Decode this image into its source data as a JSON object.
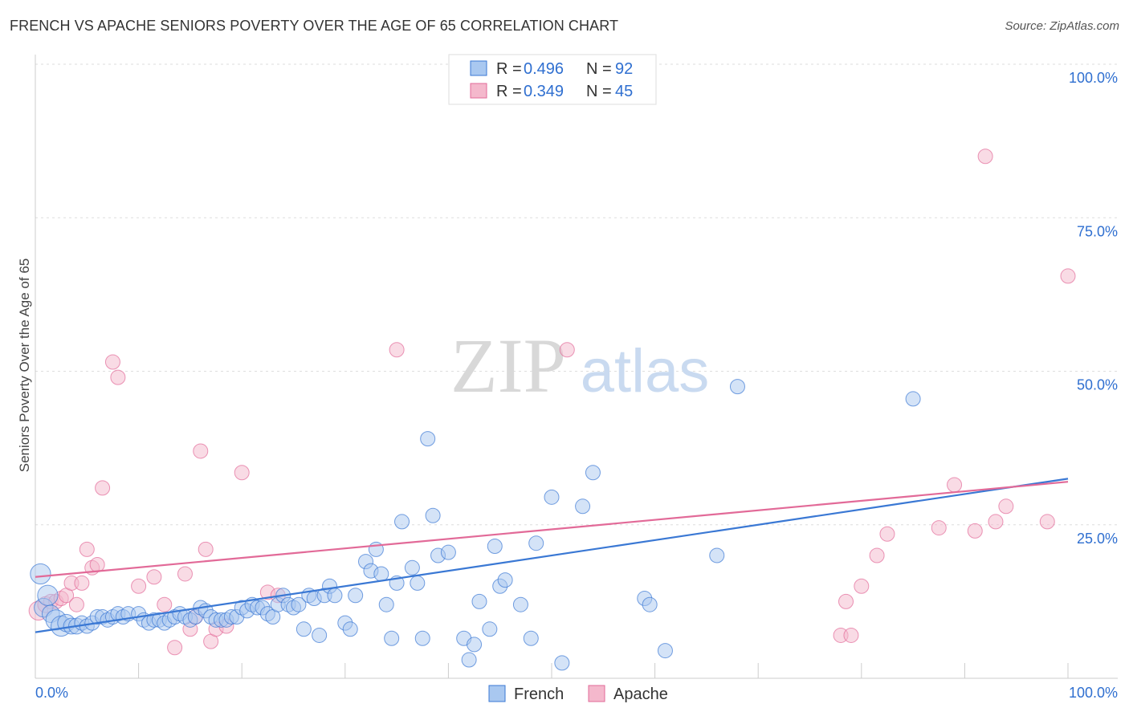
{
  "header": {
    "title": "FRENCH VS APACHE SENIORS POVERTY OVER THE AGE OF 65 CORRELATION CHART",
    "source": "Source: ZipAtlas.com"
  },
  "colors": {
    "blue": "#3a78d4",
    "blue_fill": "#a9c8f0",
    "pink": "#e26a98",
    "pink_fill": "#f4b8cc",
    "value_text": "#2f6fd0",
    "grid": "#dddddd"
  },
  "watermark": {
    "zip": "ZIP",
    "atlas": "atlas"
  },
  "chart_data": {
    "type": "scatter",
    "title": "FRENCH VS APACHE SENIORS POVERTY OVER THE AGE OF 65 CORRELATION CHART",
    "xlabel": "",
    "ylabel": "Seniors Poverty Over the Age of 65",
    "xlim": [
      0,
      100
    ],
    "ylim": [
      0,
      100
    ],
    "x_tick_labels": [
      "0.0%",
      "100.0%"
    ],
    "y_ticks": [
      {
        "value": 25,
        "label": "25.0%"
      },
      {
        "value": 50,
        "label": "50.0%"
      },
      {
        "value": 75,
        "label": "75.0%"
      },
      {
        "value": 100,
        "label": "100.0%"
      }
    ],
    "legend_stats": [
      {
        "r_label": "R =",
        "r": "0.496",
        "n_label": "N =",
        "n": "92"
      },
      {
        "r_label": "R =",
        "r": "0.349",
        "n_label": "N =",
        "n": "45"
      }
    ],
    "series": [
      {
        "name": "French",
        "trend": {
          "x1": 0,
          "y1": 7.5,
          "x2": 100,
          "y2": 32.5
        },
        "points": [
          [
            0.5,
            17,
            1.4
          ],
          [
            0.8,
            11.5,
            1.3
          ],
          [
            1.2,
            13.5,
            1.4
          ],
          [
            1.5,
            10.5,
            1.2
          ],
          [
            2,
            9.5,
            1.4
          ],
          [
            2.5,
            8.5,
            1.4
          ],
          [
            3,
            9,
            1.2
          ],
          [
            3.5,
            8.5,
            1.1
          ],
          [
            4,
            8.5,
            1.1
          ],
          [
            4.5,
            9,
            1
          ],
          [
            5,
            8.5,
            1
          ],
          [
            5.5,
            9,
            1
          ],
          [
            6,
            10,
            1
          ],
          [
            6.5,
            10,
            1
          ],
          [
            7,
            9.5,
            1
          ],
          [
            7.5,
            10,
            1
          ],
          [
            8,
            10.5,
            1
          ],
          [
            8.5,
            10,
            1
          ],
          [
            9,
            10.5,
            1
          ],
          [
            10,
            10.5,
            1
          ],
          [
            10.5,
            9.5,
            1
          ],
          [
            11,
            9,
            1
          ],
          [
            11.5,
            9.5,
            1
          ],
          [
            12,
            9.5,
            1
          ],
          [
            12.5,
            9,
            1
          ],
          [
            13,
            9.5,
            1
          ],
          [
            13.5,
            10,
            1
          ],
          [
            14,
            10.5,
            1
          ],
          [
            14.5,
            10,
            1
          ],
          [
            15,
            9.5,
            1
          ],
          [
            15.5,
            10,
            1
          ],
          [
            16,
            11.5,
            1
          ],
          [
            16.5,
            11,
            1
          ],
          [
            17,
            10,
            1
          ],
          [
            17.5,
            9.5,
            1
          ],
          [
            18,
            9.5,
            1
          ],
          [
            18.5,
            9.5,
            1
          ],
          [
            19,
            10,
            1
          ],
          [
            19.5,
            10,
            1
          ],
          [
            20,
            11.5,
            1
          ],
          [
            20.5,
            11,
            1
          ],
          [
            21,
            12,
            1
          ],
          [
            21.5,
            11.5,
            1
          ],
          [
            22,
            11.5,
            1
          ],
          [
            22.5,
            10.5,
            1
          ],
          [
            23,
            10,
            1
          ],
          [
            23.5,
            12,
            1
          ],
          [
            24,
            13.5,
            1
          ],
          [
            24.5,
            12,
            1
          ],
          [
            25,
            11.5,
            1
          ],
          [
            25.5,
            12,
            1
          ],
          [
            26,
            8,
            1
          ],
          [
            26.5,
            13.5,
            1
          ],
          [
            27,
            13,
            1
          ],
          [
            27.5,
            7,
            1
          ],
          [
            28,
            13.5,
            1
          ],
          [
            28.5,
            15,
            1
          ],
          [
            29,
            13.5,
            1
          ],
          [
            30,
            9,
            1
          ],
          [
            30.5,
            8,
            1
          ],
          [
            31,
            13.5,
            1
          ],
          [
            32,
            19,
            1
          ],
          [
            32.5,
            17.5,
            1
          ],
          [
            33,
            21,
            1
          ],
          [
            33.5,
            17,
            1
          ],
          [
            34,
            12,
            1
          ],
          [
            34.5,
            6.5,
            1
          ],
          [
            35,
            15.5,
            1
          ],
          [
            35.5,
            25.5,
            1
          ],
          [
            36.5,
            18,
            1
          ],
          [
            37,
            15.5,
            1
          ],
          [
            37.5,
            6.5,
            1
          ],
          [
            38,
            39,
            1
          ],
          [
            38.5,
            26.5,
            1
          ],
          [
            39,
            20,
            1
          ],
          [
            40,
            20.5,
            1
          ],
          [
            41.5,
            6.5,
            1
          ],
          [
            42,
            3,
            1
          ],
          [
            42.5,
            5.5,
            1
          ],
          [
            43,
            12.5,
            1
          ],
          [
            44,
            8,
            1
          ],
          [
            44.5,
            21.5,
            1
          ],
          [
            45,
            15,
            1
          ],
          [
            45.5,
            16,
            1
          ],
          [
            47,
            12,
            1
          ],
          [
            48,
            6.5,
            1
          ],
          [
            48.5,
            22,
            1
          ],
          [
            50,
            29.5,
            1
          ],
          [
            51,
            2.5,
            1
          ],
          [
            53,
            28,
            1
          ],
          [
            54,
            33.5,
            1
          ],
          [
            59,
            13,
            1
          ],
          [
            59.5,
            12,
            1
          ],
          [
            61,
            4.5,
            1
          ],
          [
            66,
            20,
            1
          ],
          [
            68,
            47.5,
            1
          ],
          [
            85,
            45.5,
            1
          ]
        ]
      },
      {
        "name": "Apache",
        "trend": {
          "x1": 0,
          "y1": 16.5,
          "x2": 100,
          "y2": 32
        },
        "points": [
          [
            0.3,
            11,
            1.3
          ],
          [
            1,
            12,
            1.1
          ],
          [
            1.5,
            12.5,
            1
          ],
          [
            2,
            12.5,
            1
          ],
          [
            2.5,
            13,
            1
          ],
          [
            3,
            13.5,
            1
          ],
          [
            3.5,
            15.5,
            1
          ],
          [
            4,
            12,
            1
          ],
          [
            4.5,
            15.5,
            1
          ],
          [
            5,
            21,
            1
          ],
          [
            5.5,
            18,
            1
          ],
          [
            6,
            18.5,
            1
          ],
          [
            6.5,
            31,
            1
          ],
          [
            7.5,
            51.5,
            1
          ],
          [
            8,
            49,
            1
          ],
          [
            10,
            15,
            1
          ],
          [
            11.5,
            16.5,
            1
          ],
          [
            12.5,
            12,
            1
          ],
          [
            13.5,
            5,
            1
          ],
          [
            14.5,
            17,
            1
          ],
          [
            15,
            8,
            1
          ],
          [
            15.5,
            10,
            1
          ],
          [
            16,
            37,
            1
          ],
          [
            16.5,
            21,
            1
          ],
          [
            17,
            6,
            1
          ],
          [
            17.5,
            8,
            1
          ],
          [
            18.5,
            8.5,
            1
          ],
          [
            20,
            33.5,
            1
          ],
          [
            22.5,
            14,
            1
          ],
          [
            23.5,
            13.5,
            1
          ],
          [
            35,
            53.5,
            1
          ],
          [
            51.5,
            53.5,
            1
          ],
          [
            78,
            7,
            1
          ],
          [
            78.5,
            12.5,
            1
          ],
          [
            79,
            7,
            1
          ],
          [
            80,
            15,
            1
          ],
          [
            81.5,
            20,
            1
          ],
          [
            82.5,
            23.5,
            1
          ],
          [
            87.5,
            24.5,
            1
          ],
          [
            89,
            31.5,
            1
          ],
          [
            91,
            24,
            1
          ],
          [
            93,
            25.5,
            1
          ],
          [
            94,
            28,
            1
          ],
          [
            92,
            85,
            1
          ],
          [
            98,
            25.5,
            1
          ],
          [
            100,
            65.5,
            1
          ]
        ]
      }
    ]
  }
}
